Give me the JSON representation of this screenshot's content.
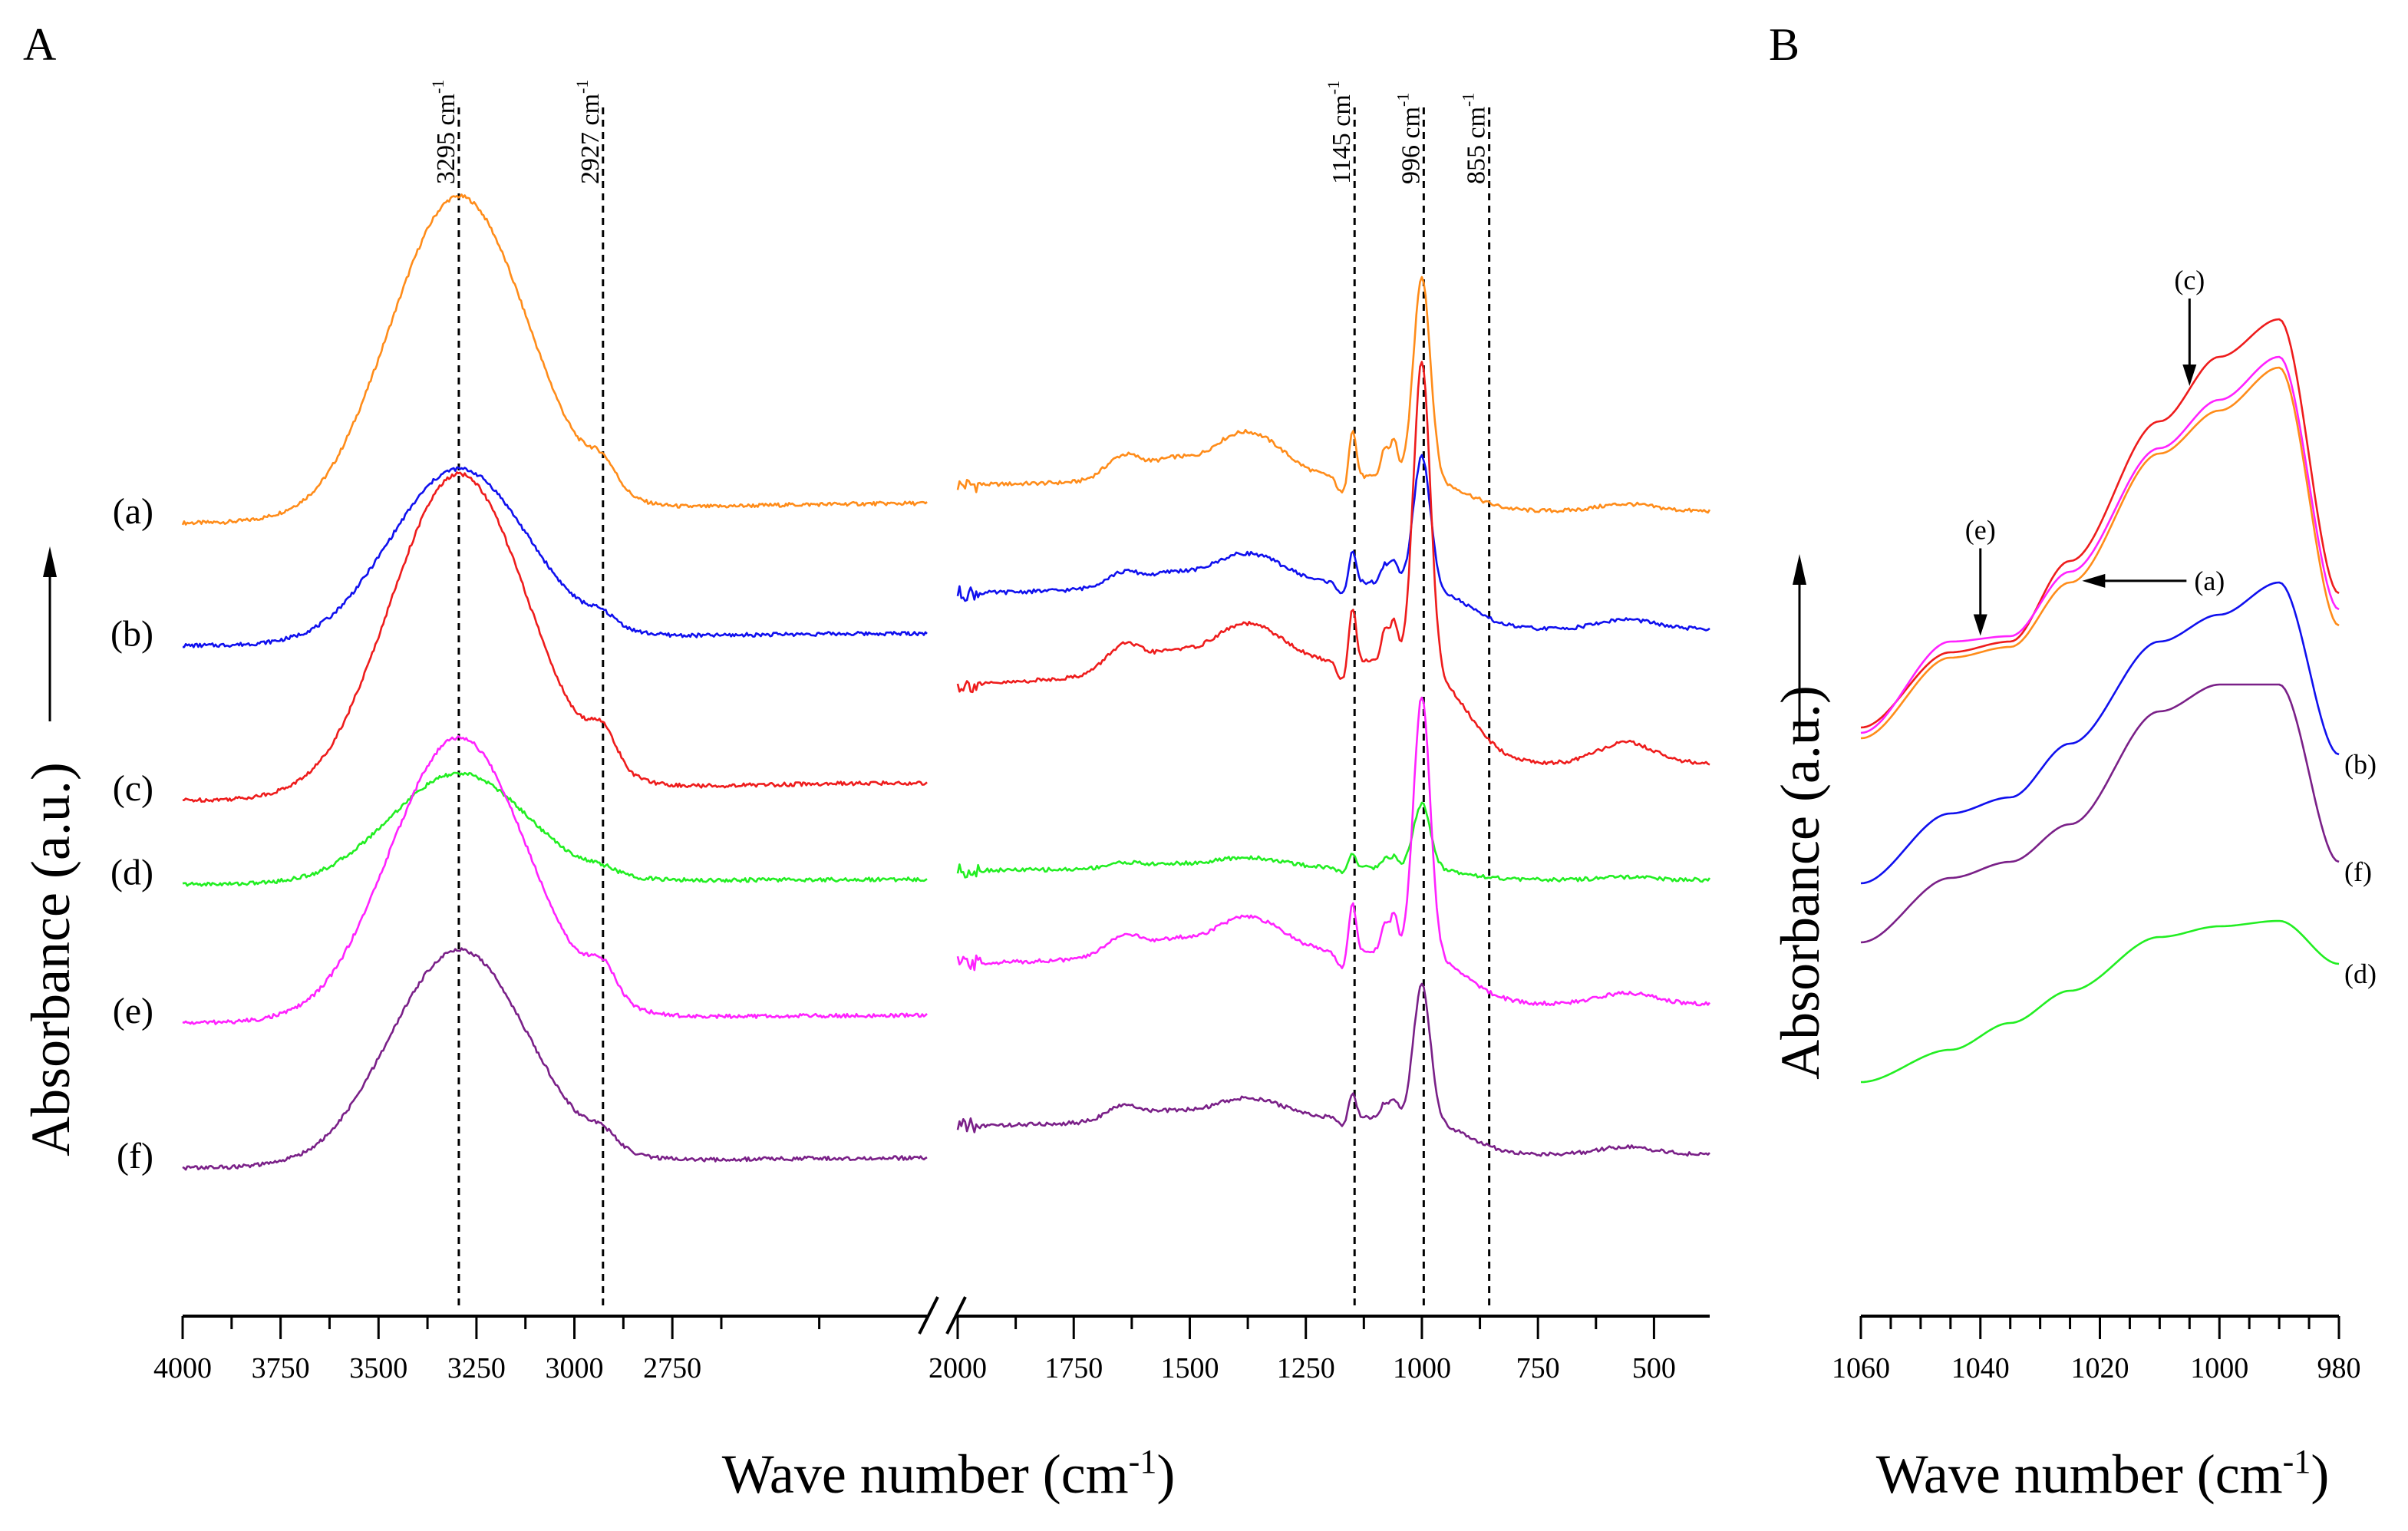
{
  "chart_data": [
    {
      "panel": "A",
      "type": "line",
      "xlabel": "Wave number (cm",
      "xlabel_sup": "-1",
      "xlabel_close": ")",
      "ylabel": "Absorbance (a.u.)",
      "x_reversed": true,
      "x_break": [
        2100,
        2000
      ],
      "xlim_left": [
        4000,
        2100
      ],
      "xlim_right": [
        2000,
        380
      ],
      "xticks": [
        4000,
        3750,
        3500,
        3250,
        3000,
        2750,
        2000,
        1750,
        1500,
        1250,
        1000,
        750,
        500
      ],
      "xtick_labels": [
        "4000",
        "3750",
        "3500",
        "3250",
        "3000",
        "2750",
        "2000",
        "1750",
        "1500",
        "1250",
        "1000",
        "750",
        "500"
      ],
      "y_ticks_shown": false,
      "reference_lines": [
        {
          "x": 3295,
          "label": "3295 cm",
          "sup": "-1"
        },
        {
          "x": 2927,
          "label": "2927 cm",
          "sup": "-1"
        },
        {
          "x": 1145,
          "label": "1145 cm",
          "sup": "-1"
        },
        {
          "x": 996,
          "label": "996 cm",
          "sup": "-1"
        },
        {
          "x": 855,
          "label": "855 cm",
          "sup": "-1"
        }
      ],
      "series": [
        {
          "name": "(a)",
          "color": "#ff8c1a",
          "baseline": 0.0,
          "oh_peak": 1.0,
          "ch_peak": 0.07,
          "tail_high": 0.08,
          "tail_low": 0.11,
          "amide": 0.08,
          "fp996": 0.63,
          "fp1145": 0.16,
          "mid": 0.09
        },
        {
          "name": "(b)",
          "color": "#1010ee",
          "baseline": -0.38,
          "oh_peak": 0.54,
          "ch_peak": 0.03,
          "tail_high": 0.05,
          "tail_low": 0.15,
          "amide": 0.05,
          "fp996": 0.4,
          "fp1145": 0.1,
          "mid": 0.06
        },
        {
          "name": "(c)",
          "color": "#ee1c1c",
          "baseline": -0.86,
          "oh_peak": 1.0,
          "ch_peak": 0.1,
          "tail_high": 0.07,
          "tail_low": 0.33,
          "amide": 0.09,
          "fp996": 0.95,
          "fp1145": 0.18,
          "mid": 0.08
        },
        {
          "name": "(d)",
          "color": "#22ee22",
          "baseline": -1.12,
          "oh_peak": 0.34,
          "ch_peak": 0.015,
          "tail_high": 0.02,
          "tail_low": 0.04,
          "amide": 0.02,
          "fp996": 0.2,
          "fp1145": 0.05,
          "mid": 0.02
        },
        {
          "name": "(e)",
          "color": "#ff22ff",
          "baseline": -1.55,
          "oh_peak": 0.88,
          "ch_peak": 0.09,
          "tail_high": 0.03,
          "tail_low": 0.17,
          "amide": 0.07,
          "fp996": 0.8,
          "fp1145": 0.16,
          "mid": 0.07
        },
        {
          "name": "(f)",
          "color": "#7a2088",
          "baseline": -2.0,
          "oh_peak": 0.67,
          "ch_peak": 0.04,
          "tail_high": 0.04,
          "tail_low": 0.12,
          "amide": 0.05,
          "fp996": 0.42,
          "fp1145": 0.08,
          "mid": 0.04
        }
      ]
    },
    {
      "panel": "B",
      "type": "line",
      "xlabel": "Wave number (cm",
      "xlabel_sup": "-1",
      "xlabel_close": ")",
      "ylabel": "Absorbance (a.u.)",
      "x_reversed": true,
      "xlim": [
        1060,
        980
      ],
      "xticks": [
        1060,
        1040,
        1020,
        1000,
        980
      ],
      "xtick_labels": [
        "1060",
        "1040",
        "1020",
        "1000",
        "980"
      ],
      "y_ticks_shown": false,
      "series": [
        {
          "name": "(c)",
          "color": "#ee1c1c",
          "y": [
            0.21,
            0.35,
            0.37,
            0.52,
            0.78,
            0.9,
            0.97,
            0.46
          ]
        },
        {
          "name": "(e)",
          "color": "#ff22ff",
          "y": [
            0.2,
            0.37,
            0.38,
            0.5,
            0.73,
            0.82,
            0.9,
            0.43
          ]
        },
        {
          "name": "(a)",
          "color": "#ff8c1a",
          "y": [
            0.19,
            0.34,
            0.36,
            0.48,
            0.72,
            0.8,
            0.88,
            0.4
          ]
        },
        {
          "name": "(b)",
          "color": "#1010ee",
          "y": [
            -0.08,
            0.05,
            0.08,
            0.18,
            0.37,
            0.42,
            0.48,
            0.16
          ]
        },
        {
          "name": "(f)",
          "color": "#7a2088",
          "y": [
            -0.19,
            -0.07,
            -0.04,
            0.03,
            0.24,
            0.29,
            0.29,
            -0.04
          ]
        },
        {
          "name": "(d)",
          "color": "#22ee22",
          "y": [
            -0.45,
            -0.39,
            -0.34,
            -0.28,
            -0.18,
            -0.16,
            -0.15,
            -0.23
          ]
        }
      ],
      "series_x": [
        1060,
        1045,
        1035,
        1025,
        1010,
        1000,
        990,
        980
      ],
      "annotations": [
        {
          "text": "(c)",
          "x": 1005,
          "arrow": "down"
        },
        {
          "text": "(e)",
          "x": 1040,
          "arrow": "down"
        },
        {
          "text": "(a)",
          "x": 1024,
          "arrow": "left"
        }
      ]
    }
  ],
  "panels": {
    "a": "A",
    "b": "B"
  }
}
